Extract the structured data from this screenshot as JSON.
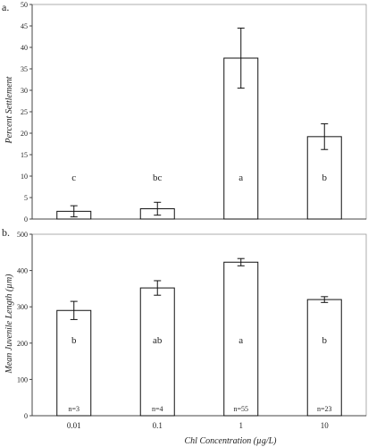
{
  "chart_data": [
    {
      "type": "bar",
      "panel_label": "a.",
      "title": "",
      "xlabel": "",
      "ylabel": "Percent Settlement",
      "ylim": [
        0,
        50
      ],
      "yticks": [
        0,
        5,
        10,
        15,
        20,
        25,
        30,
        35,
        40,
        45,
        50
      ],
      "categories": [
        "0.01",
        "0.1",
        "1",
        "10"
      ],
      "values": [
        1.8,
        2.4,
        37.5,
        19.2
      ],
      "errors": [
        1.3,
        1.5,
        7.0,
        3.0
      ],
      "group_letters": [
        "c",
        "bc",
        "a",
        "b"
      ],
      "grid": false,
      "legend": "none"
    },
    {
      "type": "bar",
      "panel_label": "b.",
      "title": "",
      "xlabel": "Chl Concentration (µg/L)",
      "ylabel": "Mean Juvenile Length (µm)",
      "ylim": [
        0,
        500
      ],
      "yticks": [
        0,
        100,
        200,
        300,
        400,
        500
      ],
      "categories": [
        "0.01",
        "0.1",
        "1",
        "10"
      ],
      "values": [
        290,
        352,
        423,
        320
      ],
      "errors": [
        25,
        20,
        10,
        8
      ],
      "group_letters": [
        "b",
        "ab",
        "a",
        "b"
      ],
      "sample_sizes": [
        "n=3",
        "n=4",
        "n=55",
        "n=23"
      ],
      "grid": false,
      "legend": "none"
    }
  ]
}
